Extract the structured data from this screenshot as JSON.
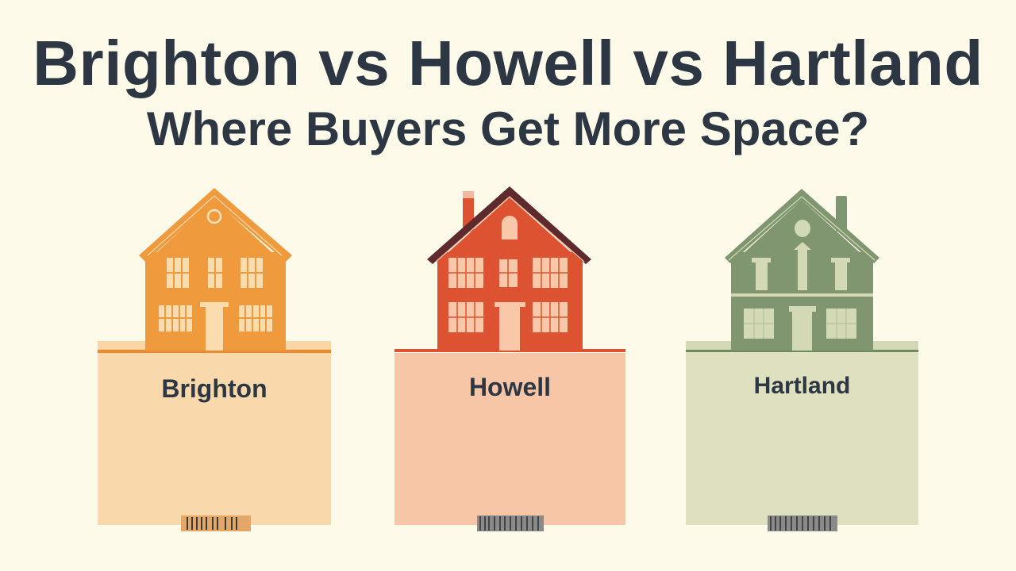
{
  "header": {
    "title": "Brighton vs Howell vs Hartland",
    "subtitle": "Where Buyers Get More Space?"
  },
  "cards": [
    {
      "label": "Brighton",
      "color": "#f09a3e",
      "card_color": "#f9d9ab",
      "trim_color": "#fad6a6"
    },
    {
      "label": "Howell",
      "color": "#dd5230",
      "card_color": "#f6c6a7",
      "trim_color": "#f9c8a8",
      "roof_color": "#5e2a2e"
    },
    {
      "label": "Hartland",
      "color": "#7f9670",
      "card_color": "#dfe0c0",
      "trim_color": "#d4d9b5"
    }
  ],
  "colors": {
    "background": "#fdfae9",
    "text": "#2d3743"
  }
}
